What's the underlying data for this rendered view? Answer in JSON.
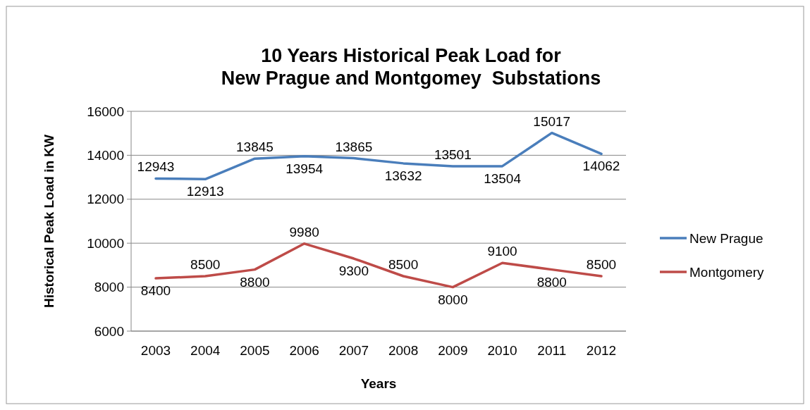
{
  "chart_data": {
    "type": "line",
    "title": "10 Years Historical Peak Load for\nNew Prague and Montgomey  Substations",
    "xlabel": "Years",
    "ylabel": "Historical Peak Load in KW",
    "categories": [
      "2003",
      "2004",
      "2005",
      "2006",
      "2007",
      "2008",
      "2009",
      "2010",
      "2011",
      "2012"
    ],
    "series": [
      {
        "name": "New Prague",
        "color": "#4a7ebb",
        "values": [
          12943,
          12913,
          13845,
          13954,
          13865,
          13632,
          13501,
          13504,
          15017,
          14062
        ]
      },
      {
        "name": "Montgomery",
        "color": "#be4b48",
        "values": [
          8400,
          8500,
          8800,
          9980,
          9300,
          8500,
          8000,
          9100,
          8800,
          8500
        ]
      }
    ],
    "ylim": [
      6000,
      16000
    ],
    "yticks": [
      6000,
      8000,
      10000,
      12000,
      14000,
      16000
    ],
    "grid": "y",
    "legend": "right",
    "data_labels": true,
    "marker": "none",
    "line_style": "solid"
  }
}
